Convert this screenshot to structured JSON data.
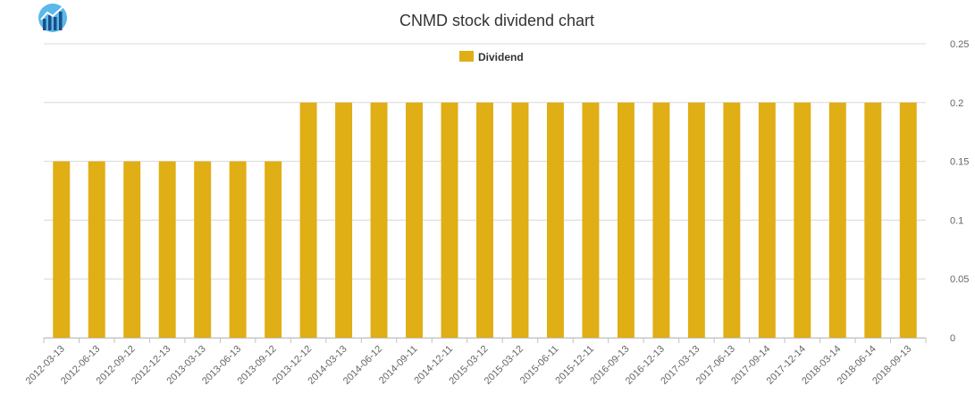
{
  "colors": {
    "bar": "#e0ae15",
    "grid": "#d8d8d8",
    "axis": "#c0c0c0",
    "logo_bg": "#5ab8ea",
    "logo_bars": "#1c4e86"
  },
  "icons": {
    "logo": "bar-chart-logo-icon"
  },
  "chart_data": {
    "type": "bar",
    "title": "CNMD stock dividend chart",
    "xlabel": "",
    "ylabel": "",
    "ylim": [
      0,
      0.25
    ],
    "yticks": [
      "0",
      "0.05",
      "0.1",
      "0.15",
      "0.2",
      "0.25"
    ],
    "yaxis_side": "right",
    "grid": true,
    "legend_position": "top-center",
    "categories": [
      "2012-03-13",
      "2012-06-13",
      "2012-09-12",
      "2012-12-13",
      "2013-03-13",
      "2013-06-13",
      "2013-09-12",
      "2013-12-12",
      "2014-03-13",
      "2014-06-12",
      "2014-09-11",
      "2014-12-11",
      "2015-03-12",
      "2015-03-12",
      "2015-06-11",
      "2015-12-11",
      "2016-09-13",
      "2016-12-13",
      "2017-03-13",
      "2017-06-13",
      "2017-09-14",
      "2017-12-14",
      "2018-03-14",
      "2018-06-14",
      "2018-09-13"
    ],
    "series": [
      {
        "name": "Dividend",
        "values": [
          0.15,
          0.15,
          0.15,
          0.15,
          0.15,
          0.15,
          0.15,
          0.2,
          0.2,
          0.2,
          0.2,
          0.2,
          0.2,
          0.2,
          0.2,
          0.2,
          0.2,
          0.2,
          0.2,
          0.2,
          0.2,
          0.2,
          0.2,
          0.2,
          0.2
        ]
      }
    ]
  }
}
